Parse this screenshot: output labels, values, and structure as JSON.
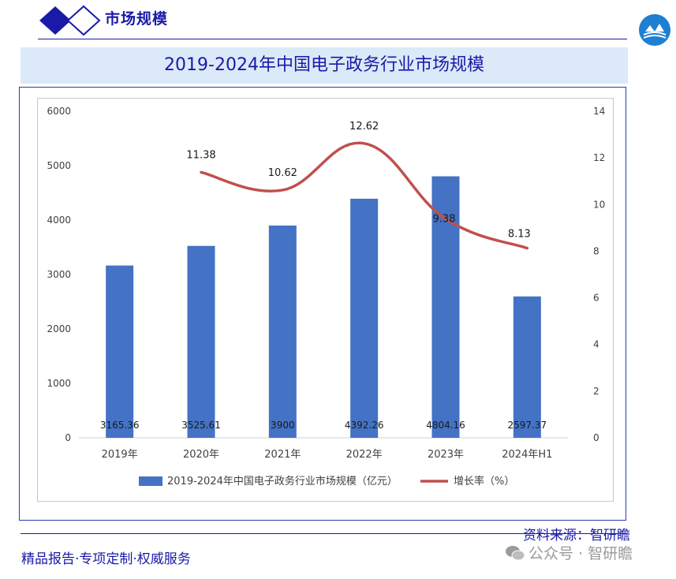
{
  "header": {
    "section_title": "市场规模"
  },
  "footer": {
    "source": "资料来源：智研瞻",
    "tagline": "精品报告·专项定制·权威服务",
    "watermark": "公众号 · 智研瞻"
  },
  "chart_data": {
    "type": "bar",
    "title": "2019-2024年中国电子政务行业市场规模",
    "categories": [
      "2019年",
      "2020年",
      "2021年",
      "2022年",
      "2023年",
      "2024年H1"
    ],
    "series": [
      {
        "name": "2019-2024年中国电子政务行业市场规模（亿元）",
        "type": "bar",
        "axis": "left",
        "color": "#4472c4",
        "values": [
          3165.36,
          3525.61,
          3900,
          4392.26,
          4804.16,
          2597.37
        ],
        "labels": [
          "3165.36",
          "3525.61",
          "3900",
          "4392.26",
          "4804.16",
          "2597.37"
        ]
      },
      {
        "name": "增长率（%）",
        "type": "line",
        "axis": "right",
        "color": "#c0504d",
        "values": [
          null,
          11.38,
          10.62,
          12.62,
          9.38,
          8.13
        ],
        "labels": [
          "",
          "11.38",
          "10.62",
          "12.62",
          "9.38",
          "8.13"
        ]
      }
    ],
    "y_left": {
      "min": 0,
      "max": 6000,
      "ticks": [
        "0",
        "1000",
        "2000",
        "3000",
        "4000",
        "5000",
        "6000"
      ]
    },
    "y_right": {
      "min": 0,
      "max": 14,
      "ticks": [
        "0",
        "2",
        "4",
        "6",
        "8",
        "10",
        "12",
        "14"
      ]
    },
    "grid": false,
    "legend": "bottom"
  }
}
